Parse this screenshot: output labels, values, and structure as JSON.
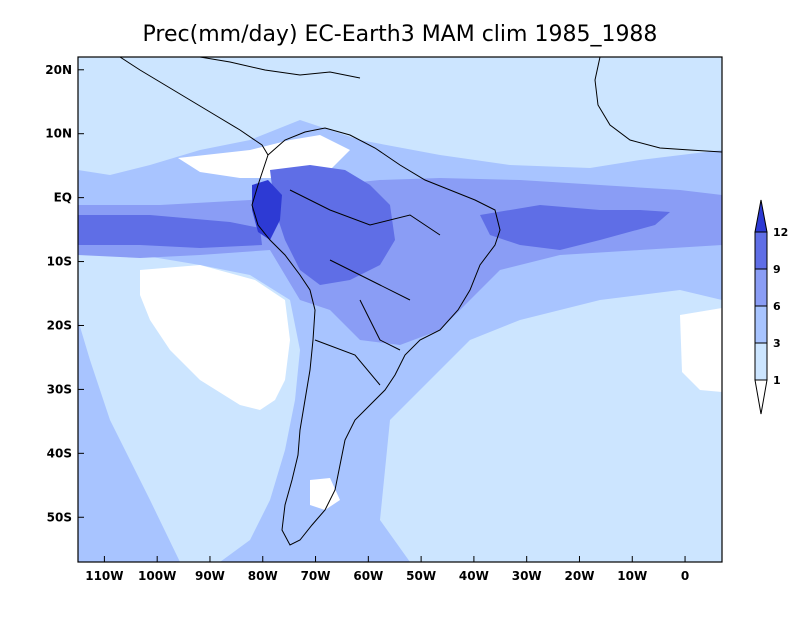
{
  "title": "Prec(mm/day) EC-Earth3 MAM clim 1985_1988",
  "map": {
    "lon_range": [
      -115,
      7
    ],
    "lat_range": [
      -57,
      22
    ],
    "lon_ticks": [
      {
        "value": -110,
        "label": "110W"
      },
      {
        "value": -100,
        "label": "100W"
      },
      {
        "value": -90,
        "label": "90W"
      },
      {
        "value": -80,
        "label": "80W"
      },
      {
        "value": -70,
        "label": "70W"
      },
      {
        "value": -60,
        "label": "60W"
      },
      {
        "value": -50,
        "label": "50W"
      },
      {
        "value": -40,
        "label": "40W"
      },
      {
        "value": -30,
        "label": "30W"
      },
      {
        "value": -20,
        "label": "20W"
      },
      {
        "value": -10,
        "label": "10W"
      },
      {
        "value": 0,
        "label": "0"
      }
    ],
    "lat_ticks": [
      {
        "value": 20,
        "label": "20N"
      },
      {
        "value": 10,
        "label": "10N"
      },
      {
        "value": 0,
        "label": "EQ"
      },
      {
        "value": -10,
        "label": "10S"
      },
      {
        "value": -20,
        "label": "20S"
      },
      {
        "value": -30,
        "label": "30S"
      },
      {
        "value": -40,
        "label": "40S"
      },
      {
        "value": -50,
        "label": "50S"
      }
    ]
  },
  "colorbar": {
    "levels": [
      "1",
      "3",
      "6",
      "9",
      "12"
    ],
    "colors": [
      "#ffffff",
      "#cce5ff",
      "#a8c4ff",
      "#8a9df5",
      "#5f6ee6",
      "#2d3ad4"
    ]
  },
  "fill_colors": {
    "c0": "#ffffff",
    "c1": "#cce5ff",
    "c2": "#a8c4ff",
    "c3": "#8a9df5",
    "c4": "#5f6ee6",
    "c5": "#2d3ad4"
  }
}
